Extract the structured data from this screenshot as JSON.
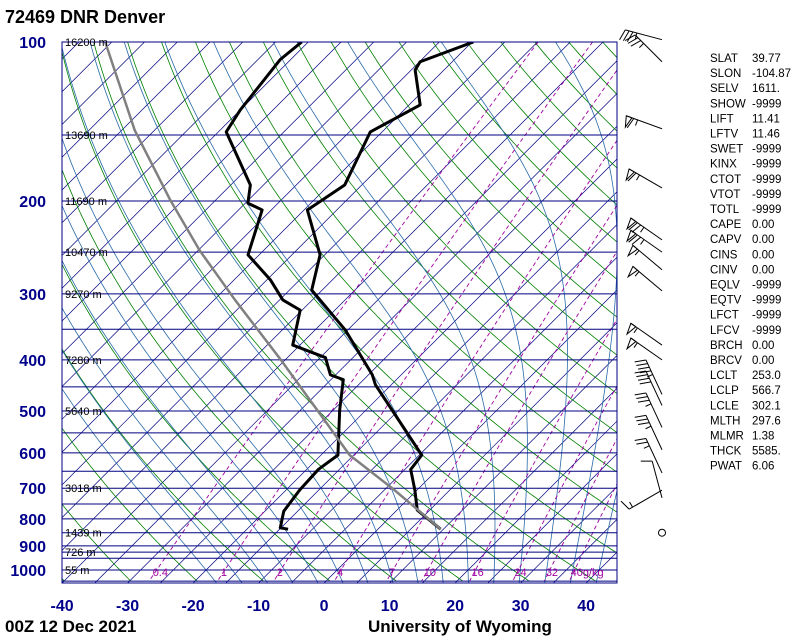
{
  "header": {
    "title": "72469 DNR Denver"
  },
  "footer": {
    "date": "00Z 12 Dec 2021",
    "source": "University of Wyoming"
  },
  "colors": {
    "isobar": "#000080",
    "isotherm": "#000080",
    "dry_adiabat": "#008000",
    "moist_adiabat": "#2a6aa8",
    "mixing_ratio": "#a000a0",
    "temperature": "#000000",
    "dewpoint": "#000000",
    "parcel": "#808080"
  },
  "chart_data": {
    "type": "line",
    "subtype": "skew-T log-P",
    "title": "72469 DNR Denver",
    "xlabel": "Temperature (C)",
    "ylabel": "Pressure (hPa)",
    "xlim": [
      -40,
      45
    ],
    "ylim": [
      1050,
      100
    ],
    "pressure_ticks": [
      "100",
      "200",
      "300",
      "400",
      "500",
      "600",
      "700",
      "800",
      "900",
      "1000"
    ],
    "temperature_ticks": [
      "-40",
      "-30",
      "-20",
      "-10",
      "0",
      "10",
      "20",
      "30",
      "40"
    ],
    "height_labels": [
      {
        "p": 100,
        "label": "16200 m"
      },
      {
        "p": 150,
        "label": "13690 m"
      },
      {
        "p": 200,
        "label": "11690 m"
      },
      {
        "p": 250,
        "label": "10470 m"
      },
      {
        "p": 300,
        "label": "9270 m"
      },
      {
        "p": 400,
        "label": "7280 m"
      },
      {
        "p": 500,
        "label": "5640 m"
      },
      {
        "p": 700,
        "label": "3018 m"
      },
      {
        "p": 850,
        "label": "1439 m"
      },
      {
        "p": 925,
        "label": "726 m"
      },
      {
        "p": 1000,
        "label": "55 m"
      }
    ],
    "mixing_ratio_labels": [
      "0.4",
      "1",
      "2",
      "4",
      "7",
      "10",
      "16",
      "24",
      "32",
      "40g/kg"
    ],
    "mixing_ratio_values": [
      0.4,
      1,
      2,
      4,
      7,
      10,
      16,
      24,
      32,
      40
    ],
    "series": [
      {
        "name": "Temperature",
        "points": [
          [
            837,
            9.6
          ],
          [
            770,
            3.1
          ],
          [
            706,
            -0.3
          ],
          [
            645,
            -4.1
          ],
          [
            606,
            -4.6
          ],
          [
            446,
            -22.4
          ],
          [
            427,
            -24.4
          ],
          [
            351,
            -35.4
          ],
          [
            295,
            -46.6
          ],
          [
            253,
            -50.7
          ],
          [
            208,
            -59.5
          ],
          [
            203.6,
            -59.1
          ],
          [
            186.6,
            -57.6
          ],
          [
            148,
            -61.8
          ],
          [
            131.6,
            -58.3
          ],
          [
            113,
            -64.4
          ],
          [
            109,
            -64.9
          ],
          [
            100,
            -59.8
          ]
        ]
      },
      {
        "name": "Dewpoint",
        "points": [
          [
            837,
            -13.7
          ],
          [
            832,
            -15.1
          ],
          [
            774,
            -17.1
          ],
          [
            706,
            -17.9
          ],
          [
            645,
            -18.2
          ],
          [
            606,
            -17.4
          ],
          [
            498,
            -24
          ],
          [
            436,
            -28.1
          ],
          [
            427,
            -30.8
          ],
          [
            396,
            -34.2
          ],
          [
            375,
            -41.1
          ],
          [
            322,
            -45.3
          ],
          [
            308,
            -49.5
          ],
          [
            282,
            -54.5
          ],
          [
            253,
            -61.7
          ],
          [
            208,
            -66.4
          ],
          [
            202,
            -69.6
          ],
          [
            186.6,
            -72
          ],
          [
            148,
            -83.8
          ],
          [
            134.5,
            -85
          ],
          [
            108,
            -86.6
          ],
          [
            100,
            -86
          ]
        ]
      },
      {
        "name": "Parcel",
        "points": [
          [
            837,
            9.6
          ],
          [
            706,
            -3.4
          ],
          [
            606,
            -15.6
          ],
          [
            521,
            -24.7
          ],
          [
            399,
            -40.8
          ],
          [
            308,
            -56.8
          ],
          [
            248,
            -69.8
          ],
          [
            199,
            -82
          ],
          [
            147,
            -98
          ],
          [
            100,
            -116
          ]
        ]
      }
    ],
    "winds": [
      {
        "p": 99,
        "dir": 285,
        "kt": 35
      },
      {
        "p": 109,
        "dir": 315,
        "kt": 35
      },
      {
        "p": 146,
        "dir": 290,
        "kt": 65
      },
      {
        "p": 189,
        "dir": 300,
        "kt": 65
      },
      {
        "p": 237,
        "dir": 305,
        "kt": 75
      },
      {
        "p": 250,
        "dir": 305,
        "kt": 75
      },
      {
        "p": 270,
        "dir": 310,
        "kt": 55
      },
      {
        "p": 296,
        "dir": 310,
        "kt": 55
      },
      {
        "p": 375,
        "dir": 305,
        "kt": 55
      },
      {
        "p": 400,
        "dir": 305,
        "kt": 55
      },
      {
        "p": 465,
        "dir": 335,
        "kt": 45
      },
      {
        "p": 488,
        "dir": 335,
        "kt": 40
      },
      {
        "p": 537,
        "dir": 335,
        "kt": 35
      },
      {
        "p": 592,
        "dir": 335,
        "kt": 35
      },
      {
        "p": 655,
        "dir": 335,
        "kt": 25
      },
      {
        "p": 706,
        "dir": 240,
        "kt": 15
      },
      {
        "p": 730,
        "dir": 345,
        "kt": 10
      },
      {
        "p": 850,
        "dir": 0,
        "kt": 0
      }
    ]
  },
  "stats": [
    {
      "k": "SLAT",
      "v": "39.77"
    },
    {
      "k": "SLON",
      "v": "-104.87"
    },
    {
      "k": "SELV",
      "v": "1611."
    },
    {
      "k": "SHOW",
      "v": "-9999"
    },
    {
      "k": "LIFT",
      "v": "11.41"
    },
    {
      "k": "LFTV",
      "v": "11.46"
    },
    {
      "k": "SWET",
      "v": "-9999"
    },
    {
      "k": "KINX",
      "v": "-9999"
    },
    {
      "k": "CTOT",
      "v": "-9999"
    },
    {
      "k": "VTOT",
      "v": "-9999"
    },
    {
      "k": "TOTL",
      "v": "-9999"
    },
    {
      "k": "CAPE",
      "v": "0.00"
    },
    {
      "k": "CAPV",
      "v": "0.00"
    },
    {
      "k": "CINS",
      "v": "0.00"
    },
    {
      "k": "CINV",
      "v": "0.00"
    },
    {
      "k": "EQLV",
      "v": "-9999"
    },
    {
      "k": "EQTV",
      "v": "-9999"
    },
    {
      "k": "LFCT",
      "v": "-9999"
    },
    {
      "k": "LFCV",
      "v": "-9999"
    },
    {
      "k": "BRCH",
      "v": "0.00"
    },
    {
      "k": "BRCV",
      "v": "0.00"
    },
    {
      "k": "LCLT",
      "v": "253.0"
    },
    {
      "k": "LCLP",
      "v": "566.7"
    },
    {
      "k": "LCLE",
      "v": "302.1"
    },
    {
      "k": "MLTH",
      "v": "297.6"
    },
    {
      "k": "MLMR",
      "v": "1.38"
    },
    {
      "k": "THCK",
      "v": "5585."
    },
    {
      "k": "PWAT",
      "v": "6.06"
    }
  ]
}
